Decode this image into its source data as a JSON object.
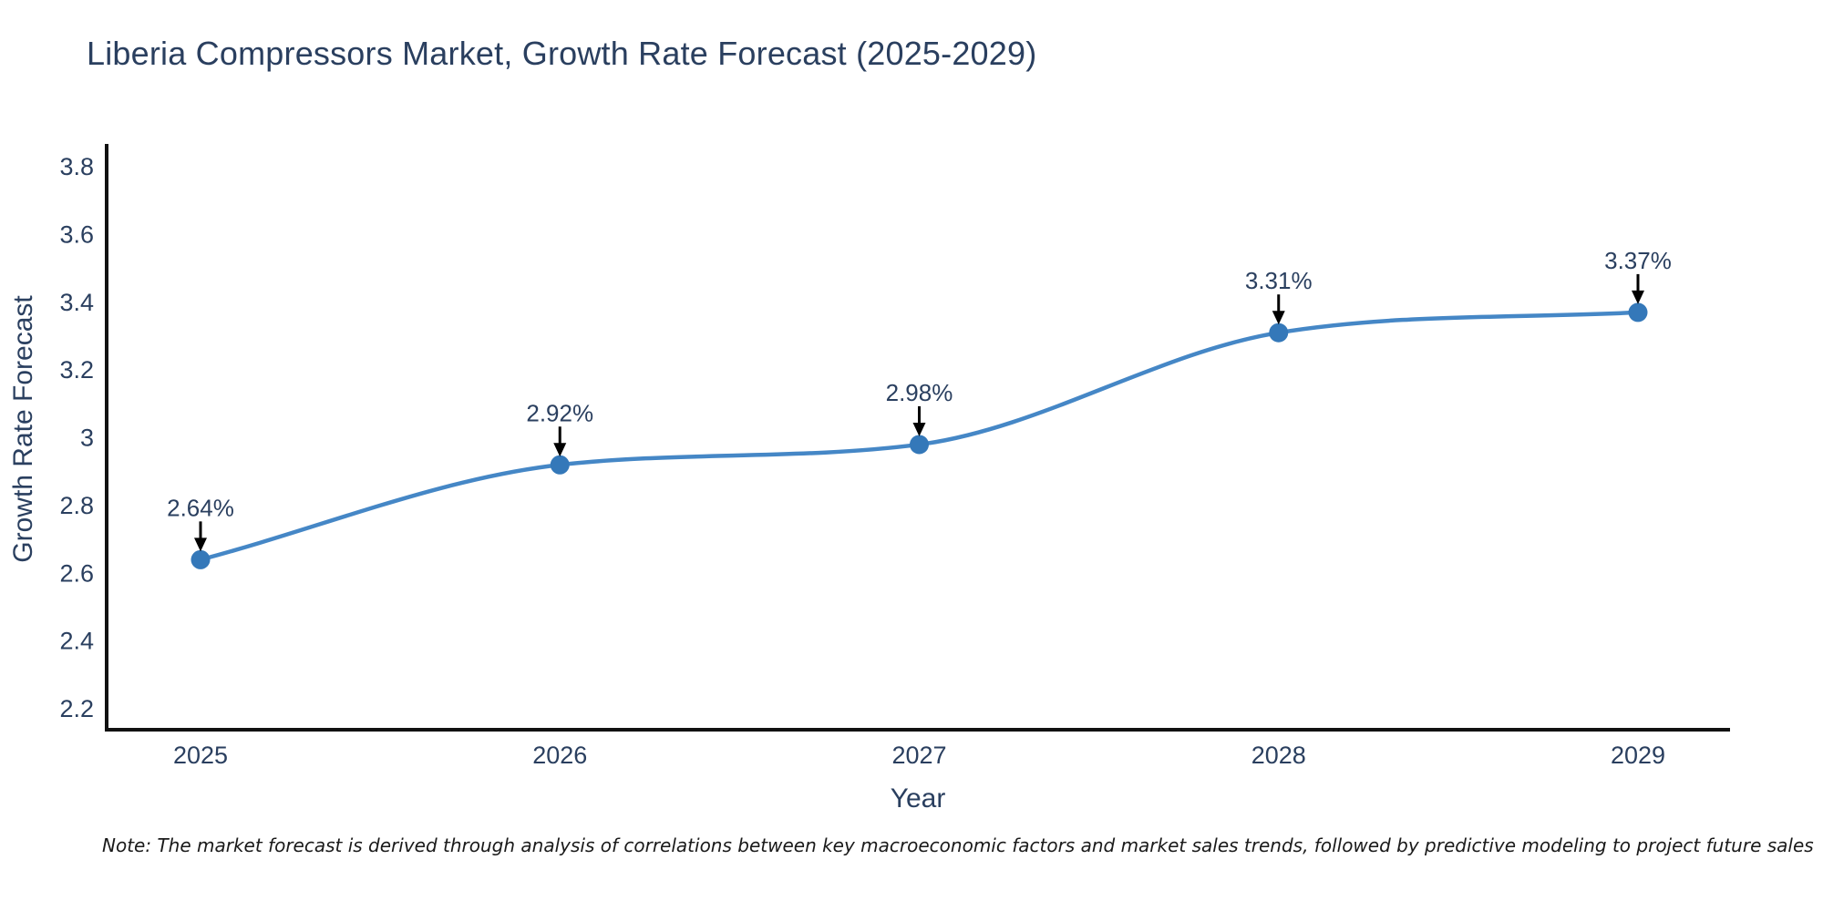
{
  "note": "Note: The market forecast is derived through analysis of correlations between key macroeconomic factors and market sales trends, followed by predictive modeling to project future sales",
  "chart_data": {
    "type": "line",
    "title": "Liberia Compressors Market, Growth Rate Forecast (2025-2029)",
    "xlabel": "Year",
    "ylabel": "Growth Rate Forecast",
    "x": [
      2025,
      2026,
      2027,
      2028,
      2029
    ],
    "series": [
      {
        "name": "Growth Rate Forecast",
        "values": [
          2.64,
          2.92,
          2.98,
          3.31,
          3.37
        ]
      }
    ],
    "point_labels": [
      "2.64%",
      "2.92%",
      "2.98%",
      "3.31%",
      "3.37%"
    ],
    "ylim": [
      2.2,
      3.8
    ],
    "yticks": [
      2.2,
      2.4,
      2.6,
      2.8,
      3,
      3.2,
      3.4,
      3.6,
      3.8
    ],
    "xticks": [
      2025,
      2026,
      2027,
      2028,
      2029
    ],
    "grid": false,
    "legend": "none",
    "line_shape": "spline",
    "annotation_style": "value label with downward black arrow to marker",
    "colors": {
      "line": "#4587c6",
      "marker": "#3478b9",
      "text": "#2a3f5f",
      "axis": "#111111",
      "arrow": "#000000",
      "note_text": "#1a1a1a",
      "background": "#ffffff"
    }
  }
}
